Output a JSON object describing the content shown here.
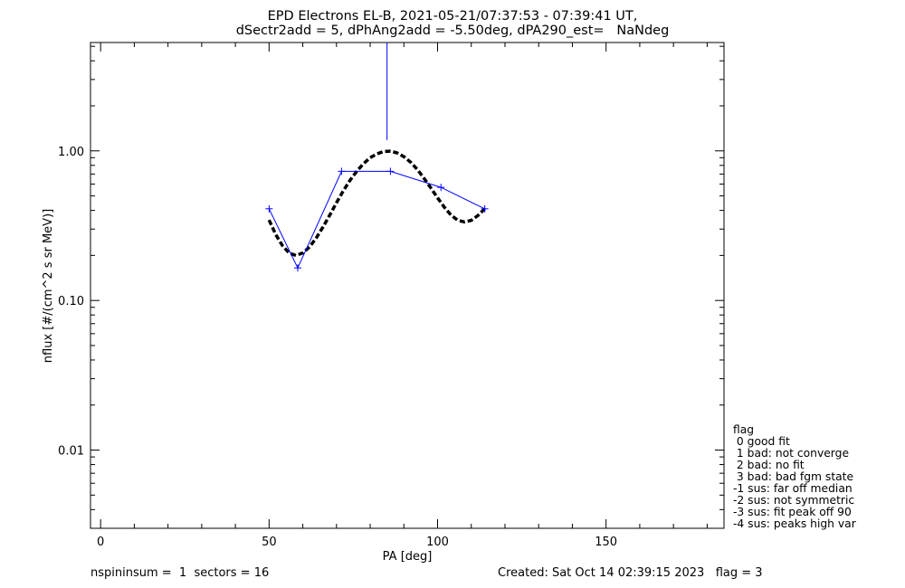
{
  "header": {
    "title_line1": "EPD Electrons EL-B, 2021-05-21/07:37:53 - 07:39:41 UT,",
    "title_line2": "dSectr2add = 5, dPhAng2add = -5.50deg, dPA290_est=   NaNdeg"
  },
  "chart_data": {
    "type": "line",
    "title": "EPD Electrons EL-B, 2021-05-21/07:37:53 - 07:39:41 UT, dSectr2add = 5, dPhAng2add = -5.50deg, dPA290_est=   NaNdeg",
    "xlabel": "PA [deg]",
    "ylabel": "nflux [#/(cm^2 s sr MeV)]",
    "xlim": [
      -3,
      185
    ],
    "ylim": [
      0.003,
      5.3
    ],
    "yscale": "log",
    "x_ticks": [
      0,
      50,
      100,
      150
    ],
    "x_tick_labels": [
      "0",
      "50",
      "100",
      "150"
    ],
    "y_ticks": [
      0.01,
      0.1,
      1.0
    ],
    "y_tick_labels": [
      "0.01",
      "0.10",
      "1.00"
    ],
    "grid": false,
    "series": [
      {
        "style": "blue line with plus markers",
        "color": "#0000ff",
        "x": [
          50,
          58.5,
          71.5,
          86,
          101,
          114
        ],
        "y": [
          0.41,
          0.165,
          0.73,
          0.73,
          0.57,
          0.41
        ]
      },
      {
        "style": "black thick dashed fit curve",
        "color": "#000000",
        "x": [
          50,
          52,
          54,
          56,
          58,
          60,
          62,
          64,
          66,
          68,
          70,
          72,
          74,
          76,
          78,
          80,
          82,
          84,
          86,
          88,
          90,
          92,
          94,
          96,
          98,
          100,
          102,
          104,
          106,
          108,
          110,
          112,
          114
        ],
        "y": [
          0.345,
          0.275,
          0.232,
          0.207,
          0.2,
          0.208,
          0.228,
          0.262,
          0.31,
          0.372,
          0.45,
          0.54,
          0.635,
          0.73,
          0.82,
          0.9,
          0.955,
          0.99,
          0.995,
          0.97,
          0.915,
          0.84,
          0.75,
          0.655,
          0.565,
          0.485,
          0.42,
          0.372,
          0.343,
          0.335,
          0.343,
          0.37,
          0.41
        ]
      }
    ],
    "error_bar": {
      "x": 85,
      "y_low": 1.18,
      "y_high": 5.3,
      "color": "#0000ff"
    }
  },
  "legend": {
    "lines": [
      "flag",
      " 0 good fit",
      " 1 bad: not converge",
      " 2 bad: no fit",
      " 3 bad: bad fgm state",
      "-1 sus: far off median",
      "-2 sus: not symmetric",
      "-3 sus: fit peak off 90",
      "-4 sus: peaks high var"
    ]
  },
  "footer": {
    "left": "nspininsum =  1  sectors = 16",
    "right": "Created: Sat Oct 14 02:39:15 2023   flag = 3"
  }
}
